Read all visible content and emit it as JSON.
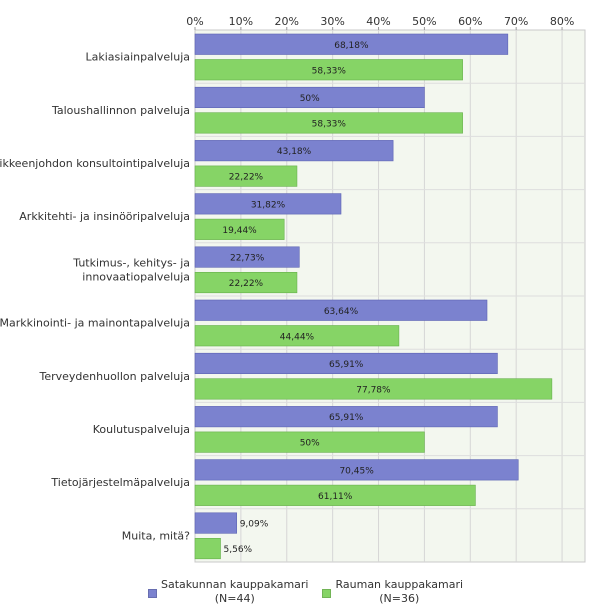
{
  "chart_data": {
    "type": "bar",
    "orientation": "horizontal",
    "title": "",
    "xlabel": "",
    "ylabel": "",
    "xlim": [
      0,
      85
    ],
    "ticks": [
      0,
      10,
      20,
      30,
      40,
      50,
      60,
      70,
      80
    ],
    "tick_labels": [
      "0%",
      "10%",
      "20%",
      "30%",
      "40%",
      "50%",
      "60%",
      "70%",
      "80%"
    ],
    "grid": true,
    "legend_position": "bottom",
    "categories": [
      [
        "Lakiasiainpalveluja"
      ],
      [
        "Taloushallinnon palveluja"
      ],
      [
        "Liikkeenjohdon konsultointipalveluja"
      ],
      [
        "Arkkitehti- ja insinööripalveluja"
      ],
      [
        "Tutkimus-, kehitys- ja",
        "innovaatiopalveluja"
      ],
      [
        "Markkinointi- ja mainontapalveluja"
      ],
      [
        "Terveydenhuollon palveluja"
      ],
      [
        "Koulutuspalveluja"
      ],
      [
        "Tietojärjestelmäpalveluja"
      ],
      [
        "Muita, mitä?"
      ]
    ],
    "series": [
      {
        "name": "Satakunnan kauppakamari",
        "n_label": "(N=44)",
        "color": "#7b82cf",
        "values": [
          68.18,
          50,
          43.18,
          31.82,
          22.73,
          63.64,
          65.91,
          65.91,
          70.45,
          9.09
        ],
        "labels": [
          "68,18%",
          "50%",
          "43,18%",
          "31,82%",
          "22,73%",
          "63,64%",
          "65,91%",
          "65,91%",
          "70,45%",
          "9,09%"
        ]
      },
      {
        "name": "Rauman kauppakamari",
        "n_label": "(N=36)",
        "color": "#86d466",
        "values": [
          58.33,
          58.33,
          22.22,
          19.44,
          22.22,
          44.44,
          77.78,
          50,
          61.11,
          5.56
        ],
        "labels": [
          "58,33%",
          "58,33%",
          "22,22%",
          "19,44%",
          "22,22%",
          "44,44%",
          "77,78%",
          "50%",
          "61,11%",
          "5,56%"
        ]
      }
    ]
  }
}
